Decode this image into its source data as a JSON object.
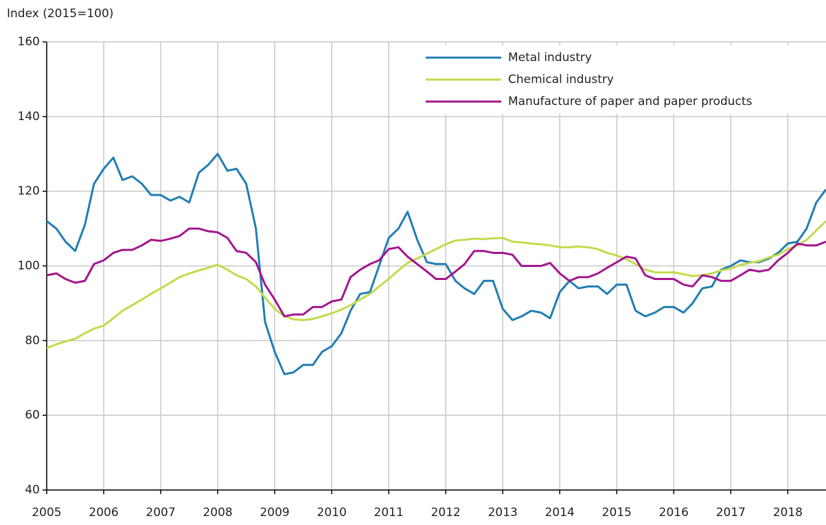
{
  "chart_data": {
    "type": "line",
    "y_label": "Index (2015=100)",
    "x": [
      2005,
      2005.17,
      2005.33,
      2005.5,
      2005.67,
      2005.83,
      2006,
      2006.17,
      2006.33,
      2006.5,
      2006.67,
      2006.83,
      2007,
      2007.17,
      2007.33,
      2007.5,
      2007.67,
      2007.83,
      2008,
      2008.17,
      2008.33,
      2008.5,
      2008.67,
      2008.83,
      2009,
      2009.17,
      2009.33,
      2009.5,
      2009.67,
      2009.83,
      2010,
      2010.17,
      2010.33,
      2010.5,
      2010.67,
      2010.83,
      2011,
      2011.17,
      2011.33,
      2011.5,
      2011.67,
      2011.83,
      2012,
      2012.17,
      2012.33,
      2012.5,
      2012.67,
      2012.83,
      2013,
      2013.17,
      2013.33,
      2013.5,
      2013.67,
      2013.83,
      2014,
      2014.17,
      2014.33,
      2014.5,
      2014.67,
      2014.83,
      2015,
      2015.17,
      2015.33,
      2015.5,
      2015.67,
      2015.83,
      2016,
      2016.17,
      2016.33,
      2016.5,
      2016.67,
      2016.83,
      2017,
      2017.17,
      2017.33,
      2017.5,
      2017.67,
      2017.83,
      2018,
      2018.17,
      2018.33,
      2018.5,
      2018.67
    ],
    "series": [
      {
        "name": "Metal industry",
        "color": "#1f7db3",
        "values": [
          112,
          110,
          106.5,
          104,
          111,
          122,
          126,
          129,
          123,
          124,
          122,
          119,
          119,
          117.5,
          118.5,
          117,
          125,
          127,
          130,
          125.5,
          126,
          122,
          110,
          85,
          77,
          71,
          71.5,
          73.5,
          73.5,
          77,
          78.5,
          82,
          88,
          92.5,
          93,
          100,
          107.5,
          110,
          114.5,
          107,
          101,
          100.5,
          100.5,
          96,
          94,
          92.5,
          96,
          96,
          88.5,
          85.5,
          86.5,
          88,
          87.5,
          86,
          93,
          96,
          94,
          94.5,
          94.5,
          92.5,
          95,
          95,
          88,
          86.5,
          87.5,
          89,
          89,
          87.5,
          90,
          94,
          94.5,
          99,
          100,
          101.5,
          101,
          101,
          102,
          103.5,
          106,
          106.5,
          110,
          117,
          120.5
        ]
      },
      {
        "name": "Chemical industry",
        "color": "#c3da4a",
        "values": [
          78,
          79,
          79.8,
          80.5,
          82,
          83.2,
          84,
          86,
          88,
          89.5,
          91,
          92.5,
          94,
          95.5,
          97,
          98,
          98.8,
          99.5,
          100.3,
          99,
          97.5,
          96.5,
          94.5,
          91.5,
          88.5,
          86.5,
          85.7,
          85.5,
          85.8,
          86.5,
          87.3,
          88.3,
          89.5,
          91,
          92.5,
          94.5,
          96.5,
          98.8,
          100.8,
          102,
          103.3,
          104.5,
          105.8,
          106.8,
          107,
          107.3,
          107.2,
          107.4,
          107.5,
          106.5,
          106.3,
          106,
          105.8,
          105.5,
          105,
          105,
          105.2,
          105,
          104.5,
          103.5,
          102.8,
          101.8,
          100.5,
          99,
          98.3,
          98.2,
          98.3,
          97.8,
          97.3,
          97.5,
          98,
          98.8,
          99.3,
          100.3,
          100.8,
          101.3,
          102.3,
          103,
          104.5,
          105.5,
          107,
          109.5,
          112
        ]
      },
      {
        "name": "Manufacture of paper and paper products",
        "color": "#a3148e",
        "values": [
          97.5,
          98,
          96.5,
          95.5,
          96,
          100.5,
          101.5,
          103.5,
          104.3,
          104.3,
          105.5,
          107,
          106.7,
          107.3,
          108,
          110,
          110,
          109.3,
          109,
          107.5,
          104,
          103.5,
          101,
          95,
          91,
          86.5,
          87,
          87,
          89,
          89,
          90.5,
          91,
          97,
          99,
          100.5,
          101.5,
          104.5,
          105,
          102.5,
          100.5,
          98.5,
          96.5,
          96.5,
          98.5,
          100.5,
          104,
          104,
          103.5,
          103.5,
          103,
          100,
          100,
          100,
          100.8,
          98,
          96,
          97,
          97,
          98,
          99.5,
          101,
          102.5,
          102,
          97.5,
          96.5,
          96.5,
          96.5,
          95,
          94.5,
          97.5,
          97,
          96,
          96,
          97.5,
          99,
          98.5,
          99,
          101.5,
          103.5,
          106,
          105.5,
          105.5,
          106.5
        ]
      }
    ],
    "xlim": [
      2005,
      2018.67
    ],
    "xticks": [
      2005,
      2006,
      2007,
      2008,
      2009,
      2010,
      2011,
      2012,
      2013,
      2014,
      2015,
      2016,
      2017,
      2018
    ],
    "ylim": [
      40,
      160
    ],
    "yticks": [
      40,
      60,
      80,
      100,
      120,
      140,
      160
    ],
    "grid": true,
    "legend": "upper right"
  }
}
